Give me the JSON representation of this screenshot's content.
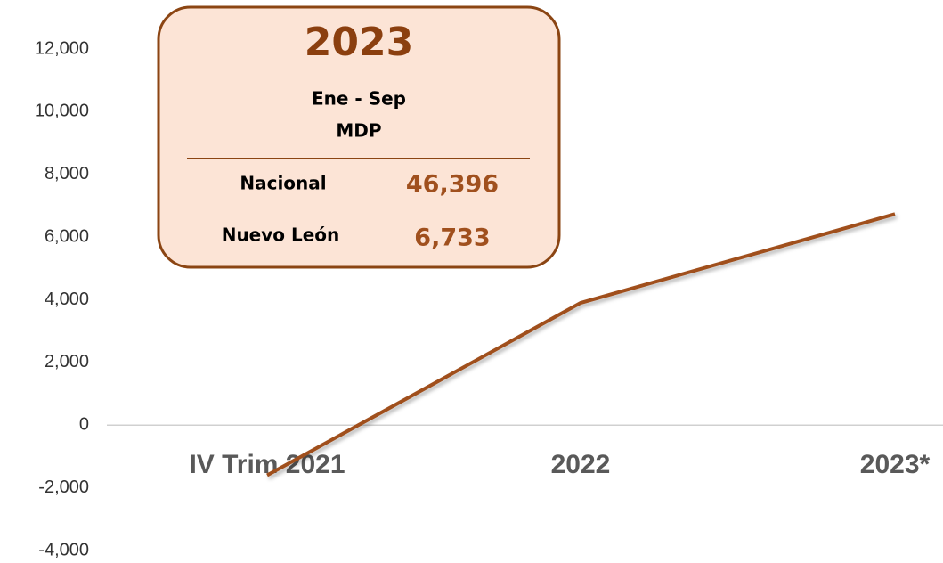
{
  "chart_data": {
    "type": "line",
    "categories": [
      "IV Trim 2021",
      "2022",
      "2023*"
    ],
    "series": [
      {
        "name": "Nuevo León",
        "color": "#a0501e",
        "values": [
          -1600,
          3900,
          6733
        ]
      }
    ],
    "ylim": [
      -4000,
      12000
    ],
    "yticks": [
      {
        "value": -4000,
        "label": "-4,000"
      },
      {
        "value": -2000,
        "label": "-2,000"
      },
      0,
      {
        "value": 2000,
        "label": "2,000"
      },
      {
        "value": 4000,
        "label": "4,000"
      },
      {
        "value": 6000,
        "label": "6,000"
      },
      {
        "value": 8000,
        "label": "8,000"
      },
      {
        "value": 10000,
        "label": "10,000"
      },
      {
        "value": 12000,
        "label": "12,000"
      }
    ],
    "grid": false,
    "annotation": {
      "title": "2023",
      "subtitle": [
        "Ene - Sep",
        "MDP"
      ],
      "rows": [
        {
          "label": "Nacional",
          "value": "46,396"
        },
        {
          "label": "Nuevo León",
          "value": "6,733"
        }
      ]
    }
  }
}
